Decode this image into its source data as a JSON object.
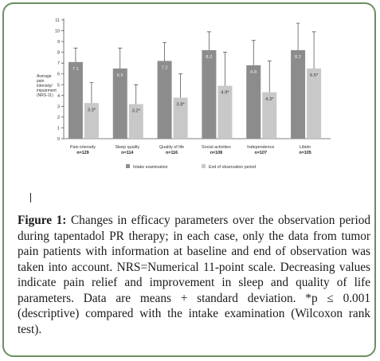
{
  "chart_data": {
    "type": "bar",
    "title": "",
    "xlabel": "",
    "ylabel": "Average pain intensity/ impairment (NRS-11)",
    "ylim": [
      0,
      11
    ],
    "yticks": [
      "0",
      "1",
      "2",
      "3",
      "4",
      "5",
      "6",
      "7",
      "8",
      "9",
      "10",
      "11"
    ],
    "categories": [
      {
        "name": "Pain intensity",
        "n": "n=129"
      },
      {
        "name": "Sleep quality",
        "n": "n=114"
      },
      {
        "name": "Quality of life",
        "n": "n=116"
      },
      {
        "name": "Social activities",
        "n": "n=108"
      },
      {
        "name": "Independence",
        "n": "n=107"
      },
      {
        "name": "Libido",
        "n": "n=105"
      }
    ],
    "series": [
      {
        "name": "Intake examination",
        "color": "#8c8c8c",
        "values": [
          7.1,
          6.5,
          7.2,
          8.2,
          6.8,
          8.2
        ],
        "labels": [
          "7.1",
          "6.5",
          "7.2",
          "8.2",
          "6.8",
          "8.2"
        ],
        "error": [
          1.3,
          1.9,
          1.7,
          1.7,
          2.3,
          2.5
        ]
      },
      {
        "name": "End of observation period",
        "color": "#c8c8c8",
        "values": [
          3.3,
          3.2,
          3.8,
          4.9,
          4.3,
          6.5
        ],
        "labels": [
          "3.3*",
          "3.2*",
          "3.8*",
          "4.9*",
          "4.3*",
          "6.5*"
        ],
        "error": [
          1.9,
          1.8,
          2.2,
          3.1,
          2.9,
          3.4
        ]
      }
    ],
    "legend_position": "bottom"
  },
  "caption": {
    "label": "Figure 1:",
    "text": " Changes in efficacy parameters over the observation period during tapentadol PR therapy; in each case, only the data from tumor pain patients with information at baseline and end of observation was taken into account. NRS=Numerical 11-point scale. Decreasing values indicate pain relief and improvement in sleep and quality of life parameters. Data are means + standard deviation. *p ≤ 0.001 (descriptive) compared with the intake examination (Wilcoxon rank test)."
  }
}
